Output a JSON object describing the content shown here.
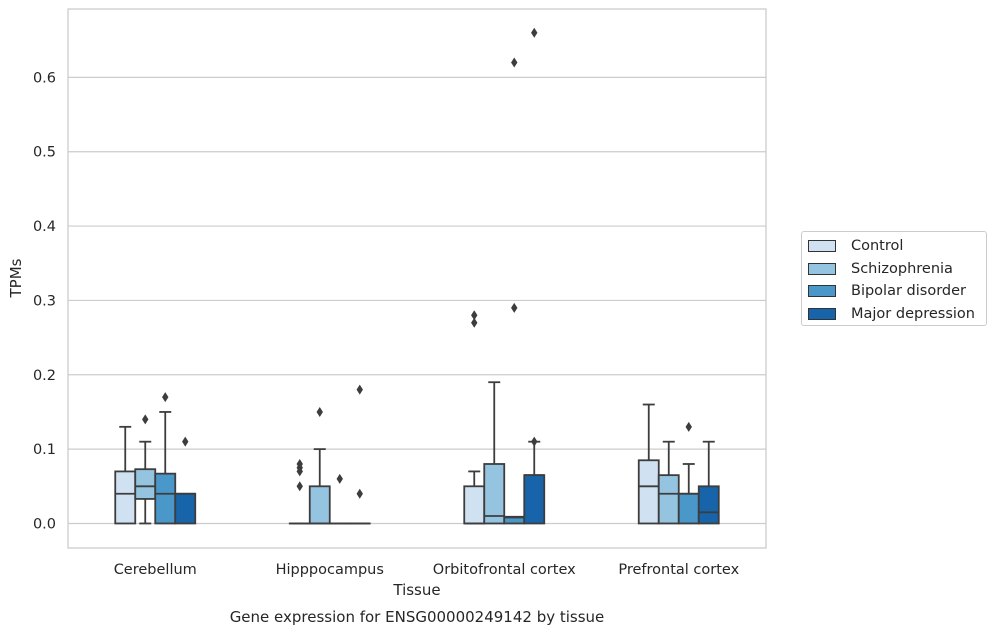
{
  "chart_data": {
    "type": "box",
    "caption": "Gene expression for ENSG00000249142 by tissue",
    "xlabel": "Tissue",
    "ylabel": "TPMs",
    "ylim": [
      -0.033,
      0.692
    ],
    "yticks": [
      "0.0",
      "0.1",
      "0.2",
      "0.3",
      "0.4",
      "0.5",
      "0.6"
    ],
    "grid": "horizontal",
    "legend_position": "right",
    "categories": [
      "Cerebellum",
      "Hipppocampus",
      "Orbitofrontal cortex",
      "Prefrontal cortex"
    ],
    "series": [
      {
        "name": "Control",
        "color": "#d0e1f2",
        "boxes": [
          {
            "whislo": 0.0,
            "q1": 0.0,
            "med": 0.04,
            "q3": 0.07,
            "whishi": 0.13,
            "fliers": []
          },
          {
            "whislo": 0.0,
            "q1": 0.0,
            "med": 0.0,
            "q3": 0.0,
            "whishi": 0.0,
            "fliers": [
              0.05,
              0.07,
              0.075,
              0.08
            ]
          },
          {
            "whislo": 0.0,
            "q1": 0.0,
            "med": 0.0,
            "q3": 0.05,
            "whishi": 0.07,
            "fliers": [
              0.27,
              0.28
            ]
          },
          {
            "whislo": 0.0,
            "q1": 0.0,
            "med": 0.05,
            "q3": 0.085,
            "whishi": 0.16,
            "fliers": []
          }
        ]
      },
      {
        "name": "Schizophrenia",
        "color": "#94c4df",
        "boxes": [
          {
            "whislo": 0.0,
            "q1": 0.033,
            "med": 0.05,
            "q3": 0.073,
            "whishi": 0.11,
            "fliers": [
              0.14
            ]
          },
          {
            "whislo": 0.0,
            "q1": 0.0,
            "med": 0.0,
            "q3": 0.05,
            "whishi": 0.1,
            "fliers": [
              0.15
            ]
          },
          {
            "whislo": 0.0,
            "q1": 0.0,
            "med": 0.01,
            "q3": 0.08,
            "whishi": 0.19,
            "fliers": []
          },
          {
            "whislo": 0.0,
            "q1": 0.0,
            "med": 0.04,
            "q3": 0.065,
            "whishi": 0.11,
            "fliers": []
          }
        ]
      },
      {
        "name": "Bipolar disorder",
        "color": "#4a98c9",
        "boxes": [
          {
            "whislo": 0.0,
            "q1": 0.0,
            "med": 0.04,
            "q3": 0.067,
            "whishi": 0.15,
            "fliers": [
              0.17
            ]
          },
          {
            "whislo": 0.0,
            "q1": 0.0,
            "med": 0.0,
            "q3": 0.0,
            "whishi": 0.0,
            "fliers": [
              0.06
            ]
          },
          {
            "whislo": 0.0,
            "q1": 0.0,
            "med": 0.008,
            "q3": 0.009,
            "whishi": 0.009,
            "fliers": [
              0.29,
              0.62
            ]
          },
          {
            "whislo": 0.0,
            "q1": 0.0,
            "med": 0.04,
            "q3": 0.04,
            "whishi": 0.08,
            "fliers": [
              0.13
            ]
          }
        ]
      },
      {
        "name": "Major depression",
        "color": "#1764ab",
        "boxes": [
          {
            "whislo": 0.0,
            "q1": 0.0,
            "med": 0.04,
            "q3": 0.04,
            "whishi": 0.04,
            "fliers": [
              0.11
            ]
          },
          {
            "whislo": 0.0,
            "q1": 0.0,
            "med": 0.0,
            "q3": 0.0,
            "whishi": 0.0,
            "fliers": [
              0.04,
              0.18
            ]
          },
          {
            "whislo": 0.0,
            "q1": 0.0,
            "med": 0.065,
            "q3": 0.065,
            "whishi": 0.11,
            "fliers": [
              0.11,
              0.66
            ]
          },
          {
            "whislo": 0.0,
            "q1": 0.0,
            "med": 0.015,
            "q3": 0.05,
            "whishi": 0.11,
            "fliers": []
          }
        ]
      }
    ]
  }
}
